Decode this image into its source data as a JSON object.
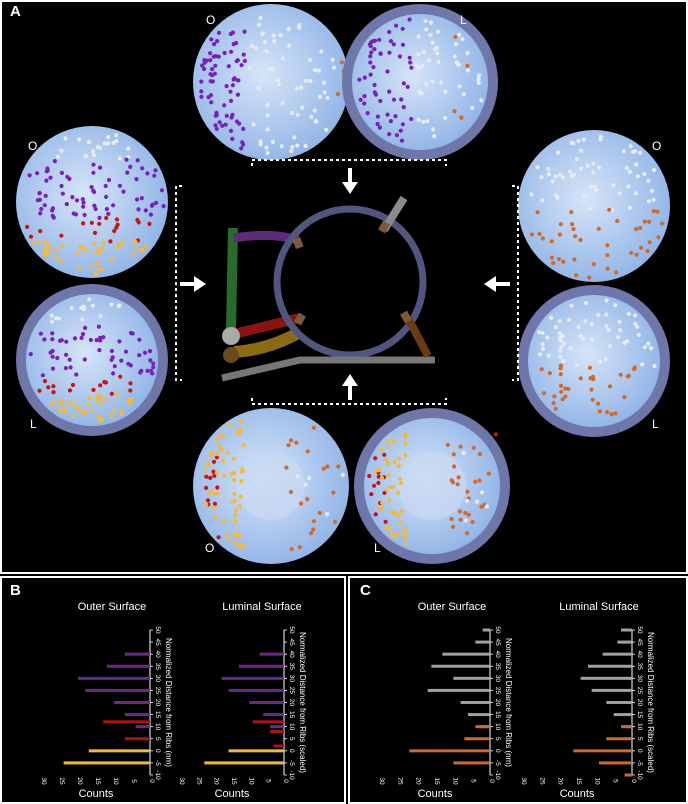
{
  "panels": {
    "a": "A",
    "b": "B",
    "c": "C"
  },
  "disc_labels": {
    "outer": "O",
    "luminal": "L"
  },
  "colors": {
    "purple": "#7a20b8",
    "red": "#c81414",
    "yellow": "#f4b93a",
    "orange": "#d06a2a",
    "white": "#e6eaf2",
    "gray": "#a0a0a0",
    "violet_bar": "#6b2a8a",
    "red_bar": "#a81616",
    "yellow_bar": "#f0b840",
    "orange_bar": "#d06a2a"
  },
  "chart_data": [
    {
      "type": "bar",
      "panel": "B",
      "title": "Outer Surface",
      "ylabel": "Normalized Distance from Ribs (nm)",
      "xlabel": "Counts",
      "x_ticks": [
        30,
        25,
        20,
        15,
        10,
        5,
        0
      ],
      "y_ticks": [
        -10,
        -5,
        0,
        5,
        10,
        15,
        20,
        25,
        30,
        35,
        40,
        45,
        50
      ],
      "series": [
        {
          "color": "violet",
          "values": [
            {
              "y": 40,
              "count": 7
            },
            {
              "y": 35,
              "count": 12
            },
            {
              "y": 30,
              "count": 20
            },
            {
              "y": 25,
              "count": 18
            },
            {
              "y": 20,
              "count": 10
            },
            {
              "y": 15,
              "count": 7
            },
            {
              "y": 10,
              "count": 4
            }
          ]
        },
        {
          "color": "red",
          "values": [
            {
              "y": 12,
              "count": 13
            },
            {
              "y": 5,
              "count": 7
            }
          ]
        },
        {
          "color": "yellow",
          "values": [
            {
              "y": 0,
              "count": 17
            },
            {
              "y": -5,
              "count": 24
            }
          ]
        }
      ]
    },
    {
      "type": "bar",
      "panel": "B",
      "title": "Luminal Surface",
      "ylabel": "Normalized Distance from Ribs (scaled)",
      "xlabel": "Counts",
      "x_ticks": [
        30,
        25,
        20,
        15,
        10,
        5,
        0
      ],
      "y_ticks": [
        -10,
        -5,
        0,
        5,
        10,
        15,
        20,
        25,
        30,
        35,
        40,
        45,
        50
      ],
      "series": [
        {
          "color": "violet",
          "values": [
            {
              "y": 40,
              "count": 7
            },
            {
              "y": 35,
              "count": 13
            },
            {
              "y": 30,
              "count": 18
            },
            {
              "y": 25,
              "count": 16
            },
            {
              "y": 20,
              "count": 10
            },
            {
              "y": 15,
              "count": 6
            },
            {
              "y": 10,
              "count": 4
            }
          ]
        },
        {
          "color": "red",
          "values": [
            {
              "y": 12,
              "count": 9
            },
            {
              "y": 8,
              "count": 4
            },
            {
              "y": 2,
              "count": 3
            }
          ]
        },
        {
          "color": "yellow",
          "values": [
            {
              "y": 0,
              "count": 16
            },
            {
              "y": -5,
              "count": 23
            }
          ]
        }
      ]
    },
    {
      "type": "bar",
      "panel": "C",
      "title": "Outer Surface",
      "ylabel": "Normalized Distance from Ribs (nm)",
      "xlabel": "Counts",
      "x_ticks": [
        30,
        25,
        20,
        15,
        10,
        5,
        0
      ],
      "y_ticks": [
        -10,
        -5,
        0,
        5,
        10,
        15,
        20,
        25,
        30,
        35,
        40,
        45,
        50
      ],
      "series": [
        {
          "color": "gray",
          "values": [
            {
              "y": 50,
              "count": 2
            },
            {
              "y": 45,
              "count": 4
            },
            {
              "y": 40,
              "count": 13
            },
            {
              "y": 35,
              "count": 16
            },
            {
              "y": 30,
              "count": 10
            },
            {
              "y": 25,
              "count": 17
            },
            {
              "y": 20,
              "count": 8
            },
            {
              "y": 15,
              "count": 6
            },
            {
              "y": 10,
              "count": 3
            }
          ]
        },
        {
          "color": "orange",
          "values": [
            {
              "y": 10,
              "count": 4
            },
            {
              "y": 5,
              "count": 7
            },
            {
              "y": 0,
              "count": 22
            },
            {
              "y": -5,
              "count": 10
            }
          ]
        }
      ]
    },
    {
      "type": "bar",
      "panel": "C",
      "title": "Luminal Surface",
      "ylabel": "Normalized Distance from Ribs (scaled)",
      "xlabel": "Counts",
      "x_ticks": [
        30,
        25,
        20,
        15,
        10,
        5,
        0
      ],
      "y_ticks": [
        -10,
        -5,
        0,
        5,
        10,
        15,
        20,
        25,
        30,
        35,
        40,
        45,
        50
      ],
      "series": [
        {
          "color": "gray",
          "values": [
            {
              "y": 50,
              "count": 3
            },
            {
              "y": 45,
              "count": 4
            },
            {
              "y": 40,
              "count": 8
            },
            {
              "y": 35,
              "count": 12
            },
            {
              "y": 30,
              "count": 14
            },
            {
              "y": 25,
              "count": 11
            },
            {
              "y": 20,
              "count": 7
            },
            {
              "y": 15,
              "count": 5
            },
            {
              "y": 10,
              "count": 2
            }
          ]
        },
        {
          "color": "orange",
          "values": [
            {
              "y": 10,
              "count": 3
            },
            {
              "y": 5,
              "count": 7
            },
            {
              "y": 0,
              "count": 16
            },
            {
              "y": -5,
              "count": 9
            },
            {
              "y": -10,
              "count": 2
            }
          ]
        }
      ]
    }
  ]
}
